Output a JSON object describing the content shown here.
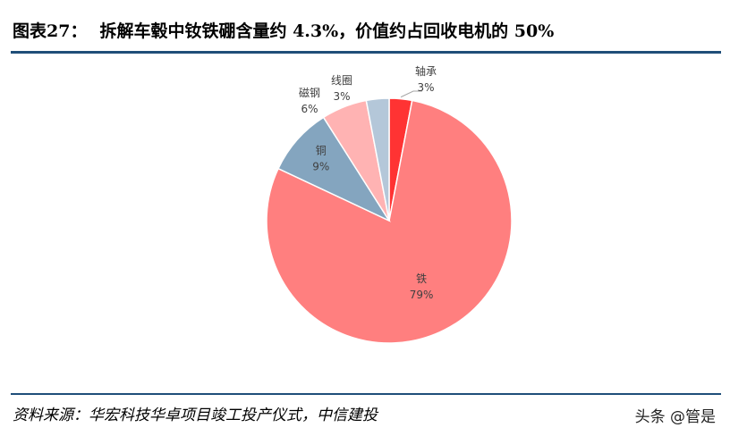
{
  "header": {
    "figure_label": "图表27：",
    "title": "拆解车毂中钕铁硼含量约 4.3%，价值约占回收电机的 50%"
  },
  "chart_data": {
    "type": "pie",
    "title": "",
    "start_angle_deg": 0,
    "direction": "clockwise",
    "legend": "none",
    "slices": [
      {
        "label": "轴承",
        "value": 3,
        "display": "3%",
        "color": "#ff3333"
      },
      {
        "label": "铁",
        "value": 79,
        "display": "79%",
        "color": "#ff7f7f"
      },
      {
        "label": "铜",
        "value": 9,
        "display": "9%",
        "color": "#84a5bf"
      },
      {
        "label": "磁钢",
        "value": 6,
        "display": "6%",
        "color": "#ffb3b3"
      },
      {
        "label": "线圈",
        "value": 3,
        "display": "3%",
        "color": "#b4c7d9"
      }
    ]
  },
  "footer": {
    "source": "资料来源：华宏科技华卓项目竣工投产仪式，中信建投",
    "watermark": "头条 @管是"
  }
}
